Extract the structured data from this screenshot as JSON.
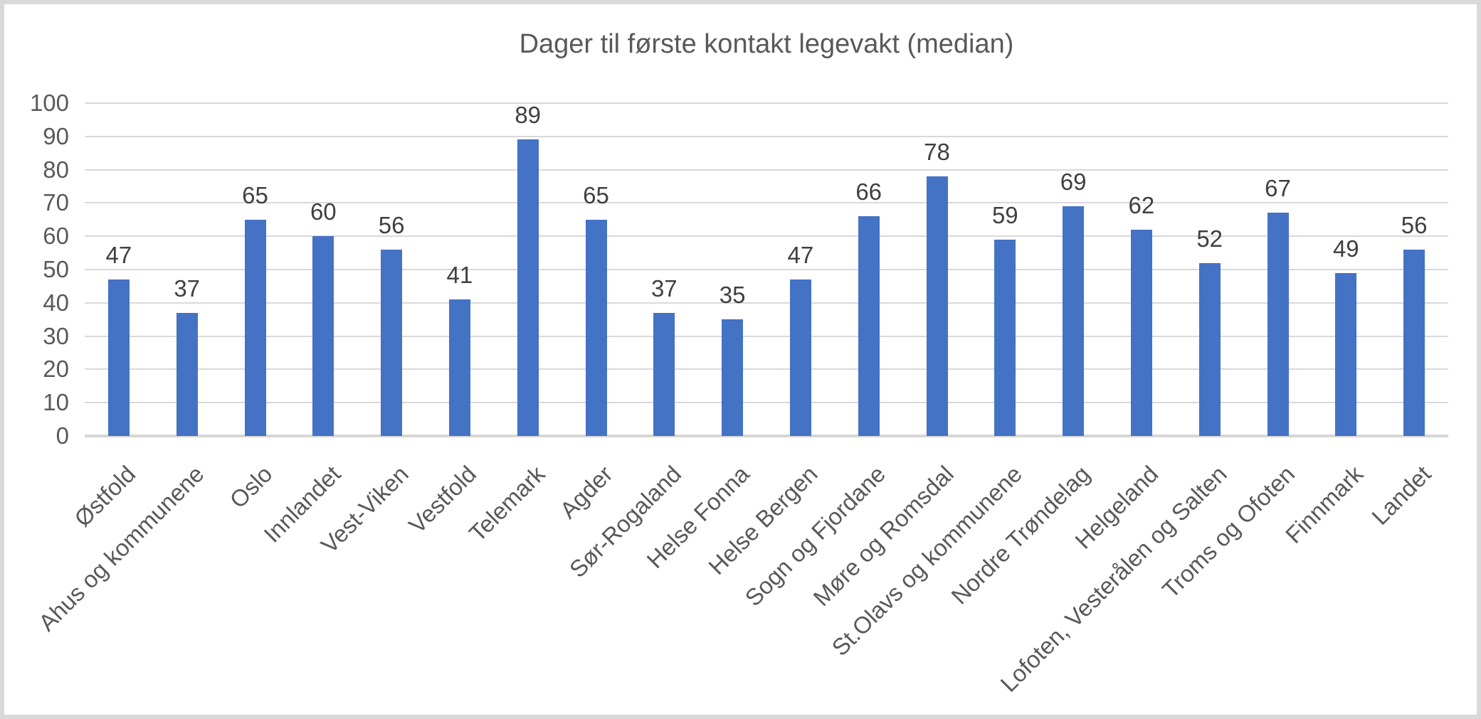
{
  "chart": {
    "colors": {
      "bar": "#4472C4",
      "gridline": "#D9D9D9",
      "axis_line": "#D6D6D6",
      "axis_text": "#595959",
      "data_label_text": "#404040",
      "title_text": "#595959",
      "frame_border": "#D9D9D9",
      "background": "#FFFFFF"
    }
  },
  "chart_data": {
    "type": "bar",
    "title": "Dager til første kontakt legevakt (median)",
    "categories": [
      "Østfold",
      "Ahus og kommunene",
      "Oslo",
      "Innlandet",
      "Vest-Viken",
      "Vestfold",
      "Telemark",
      "Agder",
      "Sør-Rogaland",
      "Helse Fonna",
      "Helse Bergen",
      "Sogn og Fjordane",
      "Møre og Romsdal",
      "St.Olavs og kommunene",
      "Nordre Trøndelag",
      "Helgeland",
      "Lofoten, Vesterålen og Salten",
      "Troms og Ofoten",
      "Finnmark",
      "Landet"
    ],
    "values": [
      47,
      37,
      65,
      60,
      56,
      41,
      89,
      65,
      37,
      35,
      47,
      66,
      78,
      59,
      69,
      62,
      52,
      67,
      49,
      56
    ],
    "data_labels": true,
    "xlabel": "",
    "ylabel": "",
    "ylim": [
      0,
      100
    ],
    "yticks": [
      0,
      10,
      20,
      30,
      40,
      50,
      60,
      70,
      80,
      90,
      100
    ],
    "grid": true,
    "legend": "none",
    "x_label_rotation_deg": -45,
    "series_color": "#4472C4"
  }
}
